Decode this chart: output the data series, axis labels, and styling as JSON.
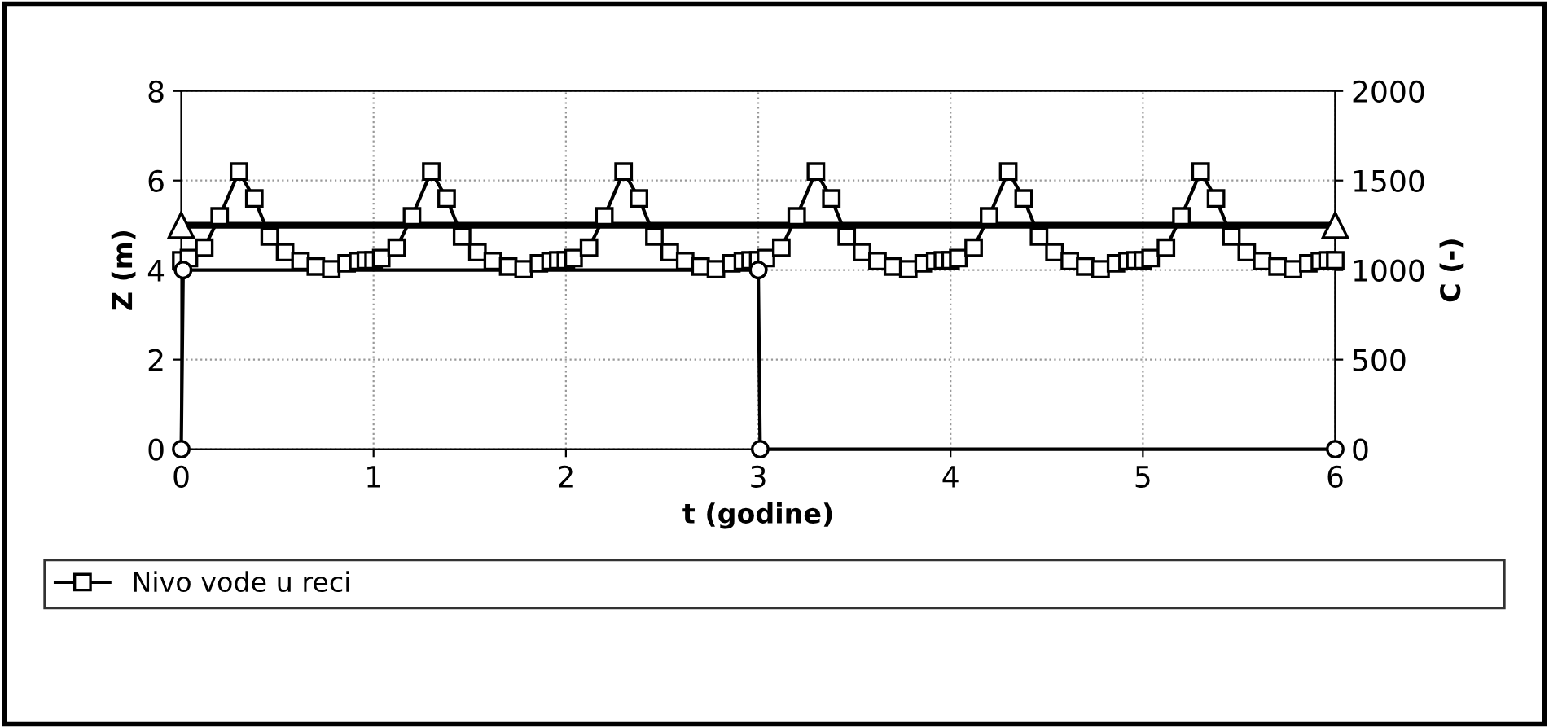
{
  "chart_data": {
    "type": "line",
    "xlabel": "t (godine)",
    "ylabel": "Z (m)",
    "y2label": "C (-)",
    "xlim": [
      0,
      6
    ],
    "xticks": [
      0,
      1,
      2,
      3,
      4,
      5,
      6
    ],
    "ylim": [
      0,
      8
    ],
    "yticks": [
      0,
      2,
      4,
      6,
      8
    ],
    "y2lim": [
      0,
      2000
    ],
    "y2ticks": [
      0,
      500,
      1000,
      1500,
      2000
    ],
    "grid": true,
    "legend": "bottom",
    "line_style": "solid",
    "series": [
      {
        "name": "Nivo vode u reci",
        "color": "#000000",
        "marker": "square",
        "x": [
          0,
          0.04,
          0.12,
          0.2,
          0.3,
          0.38,
          0.46,
          0.54,
          0.62,
          0.7,
          0.78,
          0.86,
          0.92,
          0.96,
          1,
          1.04,
          1.12,
          1.2,
          1.3,
          1.38,
          1.46,
          1.54,
          1.62,
          1.7,
          1.78,
          1.86,
          1.92,
          1.96,
          2,
          2.04,
          2.12,
          2.2,
          2.3,
          2.38,
          2.46,
          2.54,
          2.62,
          2.7,
          2.78,
          2.86,
          2.92,
          2.96,
          3,
          3.04,
          3.12,
          3.2,
          3.3,
          3.38,
          3.46,
          3.54,
          3.62,
          3.7,
          3.78,
          3.86,
          3.92,
          3.96,
          4,
          4.04,
          4.12,
          4.2,
          4.3,
          4.38,
          4.46,
          4.54,
          4.62,
          4.7,
          4.78,
          4.86,
          4.92,
          4.96,
          5,
          5.04,
          5.12,
          5.2,
          5.3,
          5.38,
          5.46,
          5.54,
          5.62,
          5.7,
          5.78,
          5.86,
          5.92,
          5.96,
          6
        ],
        "values": [
          4.22,
          4.27,
          4.5,
          5.2,
          6.2,
          5.6,
          4.75,
          4.4,
          4.2,
          4.08,
          4.02,
          4.15,
          4.2,
          4.22,
          4.22,
          4.27,
          4.5,
          5.2,
          6.2,
          5.6,
          4.75,
          4.4,
          4.2,
          4.08,
          4.02,
          4.15,
          4.2,
          4.22,
          4.22,
          4.27,
          4.5,
          5.2,
          6.2,
          5.6,
          4.75,
          4.4,
          4.2,
          4.08,
          4.02,
          4.15,
          4.2,
          4.22,
          4.22,
          4.27,
          4.5,
          5.2,
          6.2,
          5.6,
          4.75,
          4.4,
          4.2,
          4.08,
          4.02,
          4.15,
          4.2,
          4.22,
          4.22,
          4.27,
          4.5,
          5.2,
          6.2,
          5.6,
          4.75,
          4.4,
          4.2,
          4.08,
          4.02,
          4.15,
          4.2,
          4.22,
          4.22,
          4.27,
          4.5,
          5.2,
          6.2,
          5.6,
          4.75,
          4.4,
          4.2,
          4.08,
          4.02,
          4.15,
          4.2,
          4.22,
          4.22
        ]
      },
      {
        "color": "#000000",
        "marker": "triangle",
        "x": [
          0,
          6
        ],
        "values": [
          5,
          5
        ]
      },
      {
        "color": "#000000",
        "marker": "circle",
        "x": [
          0,
          0.01,
          3,
          3.01,
          6
        ],
        "values": [
          0,
          4,
          4,
          0,
          0
        ]
      }
    ]
  }
}
